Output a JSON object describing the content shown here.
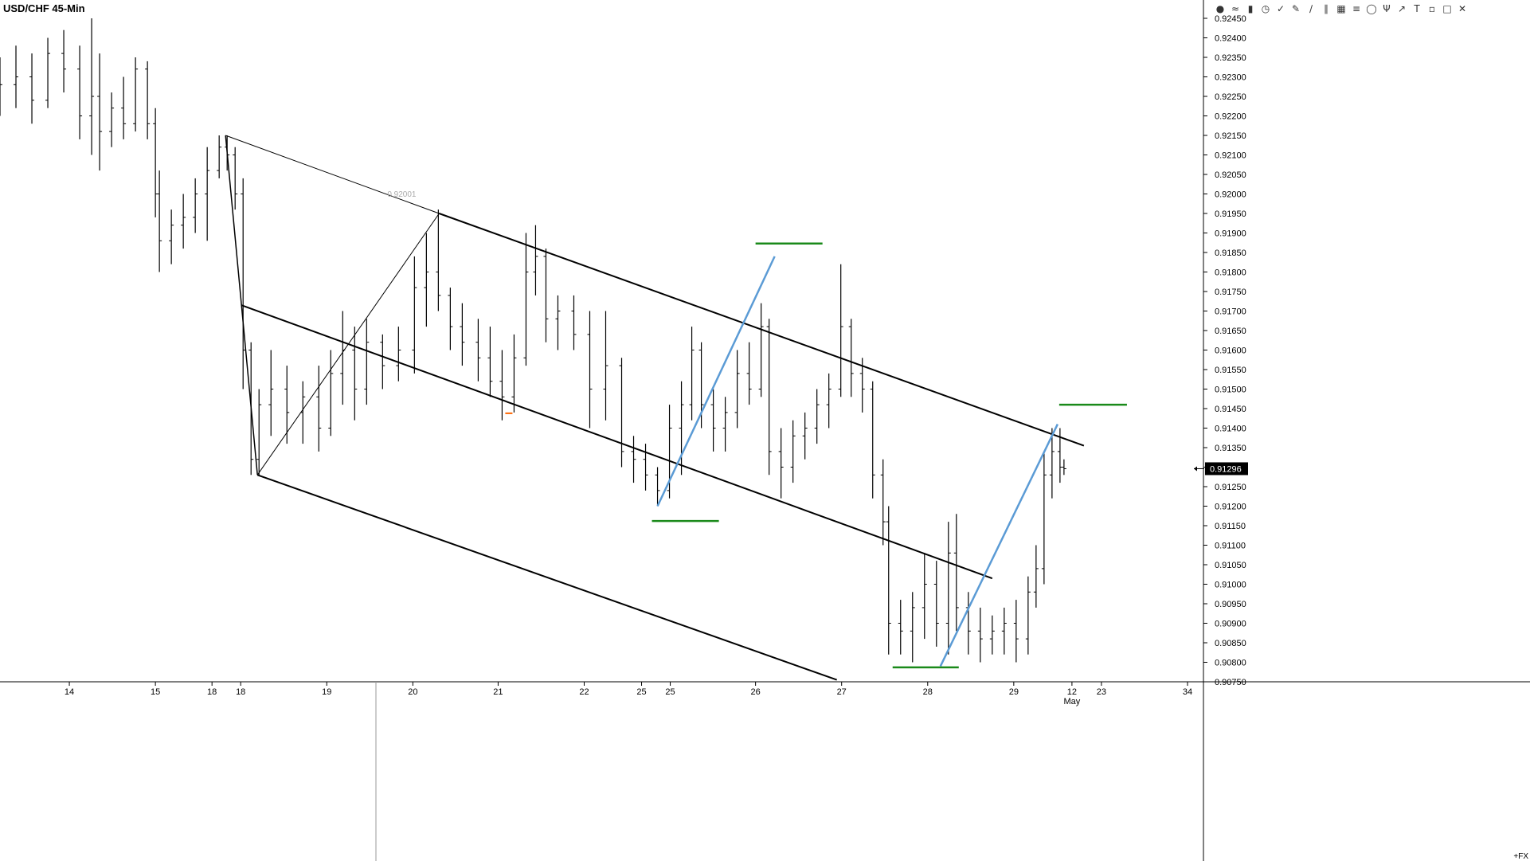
{
  "chart_data": {
    "type": "ohlc",
    "title": "USD/CHF 45-Min",
    "symbol": "USD/CHF",
    "timeframe": "45-Min",
    "ylim": [
      0.9075,
      0.9245
    ],
    "y_ticks": [
      "0.92450",
      "0.92400",
      "0.92350",
      "0.92300",
      "0.92250",
      "0.92200",
      "0.92150",
      "0.92100",
      "0.92050",
      "0.92000",
      "0.91950",
      "0.91900",
      "0.91850",
      "0.91800",
      "0.91750",
      "0.91700",
      "0.91650",
      "0.91600",
      "0.91550",
      "0.91500",
      "0.91450",
      "0.91400",
      "0.91350",
      "0.91300",
      "0.91250",
      "0.91200",
      "0.91150",
      "0.91100",
      "0.91050",
      "0.91000",
      "0.90950",
      "0.90900",
      "0.90850",
      "0.90800",
      "0.90750"
    ],
    "x_range": [
      0,
      1510
    ],
    "x_ticks": [
      {
        "label": "14",
        "x": 87
      },
      {
        "label": "15",
        "x": 195
      },
      {
        "label": "18",
        "x": 266
      },
      {
        "label": "18",
        "x": 302
      },
      {
        "label": "19",
        "x": 410
      },
      {
        "label": "20",
        "x": 518
      },
      {
        "label": "21",
        "x": 625
      },
      {
        "label": "22",
        "x": 733
      },
      {
        "label": "25",
        "x": 805
      },
      {
        "label": "25",
        "x": 841
      },
      {
        "label": "26",
        "x": 948
      },
      {
        "label": "27",
        "x": 1056
      },
      {
        "label": "28",
        "x": 1164
      },
      {
        "label": "29",
        "x": 1272
      },
      {
        "label": "12",
        "x": 1345
      },
      {
        "label": "23",
        "x": 1382
      },
      {
        "label": "34",
        "x": 1490
      }
    ],
    "x_sublabel": {
      "label": "May",
      "x": 1345
    },
    "current_price": "0.91296",
    "price_line_label": "0.92001",
    "footer_label": "+FX",
    "colors": {
      "bars": "#000000",
      "pitchfork": "#000000",
      "trendline": "#5b9bd5",
      "levels": "#1a8a1a",
      "marker": "#ff6600",
      "price_tag_bg": "#000000",
      "price_tag_text": "#ffffff"
    },
    "series": [
      {
        "values": [
          [
            0,
            0.9225,
            0.9235,
            0.922,
            0.9228
          ],
          [
            20,
            0.9228,
            0.9238,
            0.9222,
            0.923
          ],
          [
            40,
            0.923,
            0.9236,
            0.9218,
            0.9224
          ],
          [
            60,
            0.9224,
            0.924,
            0.9222,
            0.9236
          ],
          [
            80,
            0.9236,
            0.9242,
            0.9226,
            0.9232
          ],
          [
            100,
            0.9232,
            0.9238,
            0.9214,
            0.922
          ],
          [
            115,
            0.922,
            0.9245,
            0.921,
            0.9225
          ],
          [
            125,
            0.9225,
            0.9236,
            0.9206,
            0.9216
          ],
          [
            140,
            0.9216,
            0.9226,
            0.9212,
            0.9222
          ],
          [
            155,
            0.9222,
            0.923,
            0.9214,
            0.9218
          ],
          [
            170,
            0.9218,
            0.9235,
            0.9216,
            0.9232
          ],
          [
            185,
            0.9232,
            0.9234,
            0.9214,
            0.9218
          ],
          [
            195,
            0.9218,
            0.9222,
            0.9194,
            0.92
          ],
          [
            200,
            0.92,
            0.9206,
            0.918,
            0.9188
          ],
          [
            215,
            0.9188,
            0.9196,
            0.9182,
            0.9192
          ],
          [
            230,
            0.9192,
            0.92,
            0.9186,
            0.9194
          ],
          [
            245,
            0.9194,
            0.9204,
            0.919,
            0.92
          ],
          [
            260,
            0.92,
            0.9212,
            0.9188,
            0.9206
          ],
          [
            275,
            0.9206,
            0.9215,
            0.9204,
            0.9212
          ],
          [
            285,
            0.9212,
            0.9215,
            0.9206,
            0.921
          ],
          [
            295,
            0.921,
            0.9212,
            0.9196,
            0.92
          ],
          [
            305,
            0.92,
            0.9204,
            0.915,
            0.916
          ],
          [
            315,
            0.916,
            0.9162,
            0.9128,
            0.9132
          ],
          [
            325,
            0.9132,
            0.915,
            0.9128,
            0.9146
          ],
          [
            340,
            0.9146,
            0.916,
            0.9138,
            0.915
          ],
          [
            360,
            0.915,
            0.9156,
            0.9136,
            0.9144
          ],
          [
            380,
            0.9144,
            0.9152,
            0.9136,
            0.9148
          ],
          [
            400,
            0.9148,
            0.9156,
            0.9134,
            0.914
          ],
          [
            415,
            0.914,
            0.916,
            0.9138,
            0.9154
          ],
          [
            430,
            0.9154,
            0.917,
            0.9146,
            0.916
          ],
          [
            445,
            0.916,
            0.9166,
            0.9142,
            0.915
          ],
          [
            460,
            0.915,
            0.9168,
            0.9146,
            0.9162
          ],
          [
            480,
            0.9162,
            0.9164,
            0.915,
            0.9156
          ],
          [
            500,
            0.9156,
            0.9166,
            0.9152,
            0.916
          ],
          [
            520,
            0.916,
            0.9184,
            0.9154,
            0.9176
          ],
          [
            535,
            0.9176,
            0.919,
            0.9166,
            0.918
          ],
          [
            550,
            0.918,
            0.9196,
            0.917,
            0.9174
          ],
          [
            565,
            0.9174,
            0.9176,
            0.916,
            0.9166
          ],
          [
            580,
            0.9166,
            0.9172,
            0.9156,
            0.9162
          ],
          [
            600,
            0.9162,
            0.9168,
            0.9152,
            0.9158
          ],
          [
            615,
            0.9158,
            0.9166,
            0.9148,
            0.9152
          ],
          [
            630,
            0.9152,
            0.916,
            0.9142,
            0.9148
          ],
          [
            645,
            0.9148,
            0.9164,
            0.9144,
            0.9158
          ],
          [
            660,
            0.9158,
            0.919,
            0.9156,
            0.918
          ],
          [
            672,
            0.918,
            0.9192,
            0.9174,
            0.9184
          ],
          [
            685,
            0.9184,
            0.9186,
            0.9162,
            0.9168
          ],
          [
            700,
            0.9168,
            0.9174,
            0.916,
            0.917
          ],
          [
            720,
            0.917,
            0.9174,
            0.916,
            0.9164
          ],
          [
            740,
            0.9164,
            0.917,
            0.914,
            0.915
          ],
          [
            760,
            0.915,
            0.917,
            0.9142,
            0.9156
          ],
          [
            780,
            0.9156,
            0.9158,
            0.913,
            0.9134
          ],
          [
            795,
            0.9134,
            0.9138,
            0.9126,
            0.9132
          ],
          [
            810,
            0.9132,
            0.9136,
            0.9124,
            0.9128
          ],
          [
            825,
            0.9128,
            0.913,
            0.912,
            0.9124
          ],
          [
            840,
            0.9124,
            0.9146,
            0.9122,
            0.914
          ],
          [
            855,
            0.914,
            0.9152,
            0.9128,
            0.9146
          ],
          [
            868,
            0.9146,
            0.9166,
            0.9142,
            0.916
          ],
          [
            880,
            0.916,
            0.9162,
            0.914,
            0.9146
          ],
          [
            895,
            0.9146,
            0.915,
            0.9134,
            0.914
          ],
          [
            910,
            0.914,
            0.9148,
            0.9134,
            0.9144
          ],
          [
            925,
            0.9144,
            0.916,
            0.914,
            0.9154
          ],
          [
            940,
            0.9154,
            0.9162,
            0.9146,
            0.915
          ],
          [
            955,
            0.915,
            0.9172,
            0.9148,
            0.9166
          ],
          [
            965,
            0.9166,
            0.9168,
            0.9128,
            0.9134
          ],
          [
            980,
            0.9134,
            0.914,
            0.9122,
            0.913
          ],
          [
            995,
            0.913,
            0.9142,
            0.9126,
            0.9138
          ],
          [
            1010,
            0.9138,
            0.9144,
            0.9132,
            0.914
          ],
          [
            1025,
            0.914,
            0.915,
            0.9136,
            0.9146
          ],
          [
            1040,
            0.9146,
            0.9154,
            0.914,
            0.915
          ],
          [
            1055,
            0.915,
            0.9182,
            0.9148,
            0.9166
          ],
          [
            1068,
            0.9166,
            0.9168,
            0.9148,
            0.9154
          ],
          [
            1082,
            0.9154,
            0.9158,
            0.9144,
            0.915
          ],
          [
            1095,
            0.915,
            0.9152,
            0.9122,
            0.9128
          ],
          [
            1108,
            0.9128,
            0.9132,
            0.911,
            0.9116
          ],
          [
            1115,
            0.9116,
            0.912,
            0.9082,
            0.909
          ],
          [
            1130,
            0.909,
            0.9096,
            0.9082,
            0.9088
          ],
          [
            1145,
            0.9088,
            0.9098,
            0.908,
            0.9094
          ],
          [
            1160,
            0.9094,
            0.9108,
            0.9086,
            0.91
          ],
          [
            1175,
            0.91,
            0.9106,
            0.9084,
            0.909
          ],
          [
            1190,
            0.909,
            0.9116,
            0.9082,
            0.9108
          ],
          [
            1200,
            0.9108,
            0.9118,
            0.9088,
            0.9094
          ],
          [
            1215,
            0.9094,
            0.9098,
            0.9082,
            0.9088
          ],
          [
            1230,
            0.9088,
            0.9094,
            0.908,
            0.9086
          ],
          [
            1245,
            0.9086,
            0.9092,
            0.9082,
            0.9088
          ],
          [
            1260,
            0.9088,
            0.9094,
            0.9082,
            0.909
          ],
          [
            1275,
            0.909,
            0.9096,
            0.908,
            0.9086
          ],
          [
            1290,
            0.9086,
            0.9102,
            0.9082,
            0.9098
          ],
          [
            1300,
            0.9098,
            0.911,
            0.9094,
            0.9104
          ],
          [
            1310,
            0.9104,
            0.9134,
            0.91,
            0.9128
          ],
          [
            1320,
            0.9128,
            0.914,
            0.9122,
            0.9134
          ],
          [
            1330,
            0.9134,
            0.914,
            0.9126,
            0.913
          ],
          [
            1335,
            0.913,
            0.9132,
            0.9128,
            0.91296
          ]
        ]
      }
    ],
    "annotations": {
      "pitchfork": {
        "pivot": [
          283,
          0.9215
        ],
        "top": [
          551,
          0.9195
        ],
        "bottom": [
          323,
          0.9128
        ],
        "median_start": [
          303,
          0.91715
        ],
        "upper_end": [
          1360,
          0.91355
        ],
        "median_end": [
          1245,
          0.91015
        ],
        "lower_end": [
          1050,
          0.90755
        ]
      },
      "pitchfork_legs": [
        [
          [
            283,
            0.9215
          ],
          [
            323,
            0.9128
          ]
        ],
        [
          [
            323,
            0.9128
          ],
          [
            551,
            0.9195
          ]
        ]
      ],
      "blue_lines": [
        [
          [
            825,
            0.912
          ],
          [
            972,
            0.9184
          ]
        ],
        [
          [
            1180,
            0.9079
          ],
          [
            1327,
            0.9141
          ]
        ]
      ],
      "green_levels": [
        [
          [
            948,
            0.91873
          ],
          [
            1032,
            0.91873
          ]
        ],
        [
          [
            818,
            0.91162
          ],
          [
            902,
            0.91162
          ]
        ],
        [
          [
            1329,
            0.9146
          ],
          [
            1414,
            0.9146
          ]
        ],
        [
          [
            1120,
            0.90787
          ],
          [
            1203,
            0.90787
          ]
        ]
      ],
      "orange_marker": [
        [
          634,
          0.91438
        ],
        [
          643,
          0.91438
        ]
      ],
      "price_line_label_at": [
        486,
        0.92001
      ]
    }
  }
}
